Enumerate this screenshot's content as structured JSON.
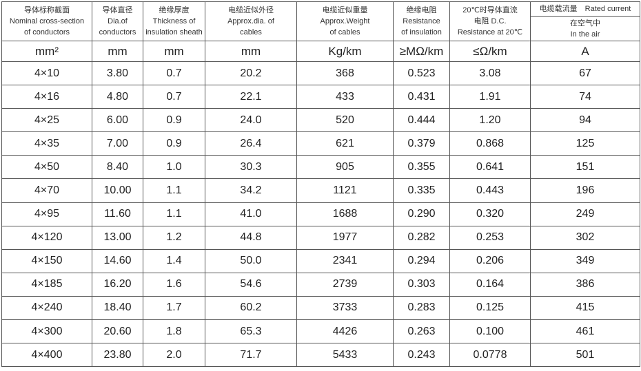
{
  "headers": [
    [
      "导体标称截面",
      "Nominal cross-section",
      "of conductors"
    ],
    [
      "导体直径",
      "Dia.of",
      "conductors"
    ],
    [
      "绝缘厚度",
      "Thickness of",
      "insulation sheath"
    ],
    [
      "电缆近似外径",
      "Approx.dia. of",
      "cables"
    ],
    [
      "电缆近似重量",
      "Approx.Weight",
      "of cables"
    ],
    [
      "绝缘电阻",
      "Resistance",
      "of insulation"
    ],
    [
      "20℃时导体直流",
      "电阻 D.C.",
      "Resistance at 20℃"
    ]
  ],
  "rated_current": {
    "title": "电缆载流量　Rated current",
    "sub1": "在空气中",
    "sub2": "In the air"
  },
  "units": [
    "mm²",
    "mm",
    "mm",
    "mm",
    "Kg/km",
    "≥MΩ/km",
    "≤Ω/km",
    "A"
  ],
  "rows": [
    [
      "4×10",
      "3.80",
      "0.7",
      "20.2",
      "368",
      "0.523",
      "3.08",
      "67"
    ],
    [
      "4×16",
      "4.80",
      "0.7",
      "22.1",
      "433",
      "0.431",
      "1.91",
      "74"
    ],
    [
      "4×25",
      "6.00",
      "0.9",
      "24.0",
      "520",
      "0.444",
      "1.20",
      "94"
    ],
    [
      "4×35",
      "7.00",
      "0.9",
      "26.4",
      "621",
      "0.379",
      "0.868",
      "125"
    ],
    [
      "4×50",
      "8.40",
      "1.0",
      "30.3",
      "905",
      "0.355",
      "0.641",
      "151"
    ],
    [
      "4×70",
      "10.00",
      "1.1",
      "34.2",
      "1121",
      "0.335",
      "0.443",
      "196"
    ],
    [
      "4×95",
      "11.60",
      "1.1",
      "41.0",
      "1688",
      "0.290",
      "0.320",
      "249"
    ],
    [
      "4×120",
      "13.00",
      "1.2",
      "44.8",
      "1977",
      "0.282",
      "0.253",
      "302"
    ],
    [
      "4×150",
      "14.60",
      "1.4",
      "50.0",
      "2341",
      "0.294",
      "0.206",
      "349"
    ],
    [
      "4×185",
      "16.20",
      "1.6",
      "54.6",
      "2739",
      "0.303",
      "0.164",
      "386"
    ],
    [
      "4×240",
      "18.40",
      "1.7",
      "60.2",
      "3733",
      "0.283",
      "0.125",
      "415"
    ],
    [
      "4×300",
      "20.60",
      "1.8",
      "65.3",
      "4426",
      "0.263",
      "0.100",
      "461"
    ],
    [
      "4×400",
      "23.80",
      "2.0",
      "71.7",
      "5433",
      "0.243",
      "0.0778",
      "501"
    ]
  ]
}
